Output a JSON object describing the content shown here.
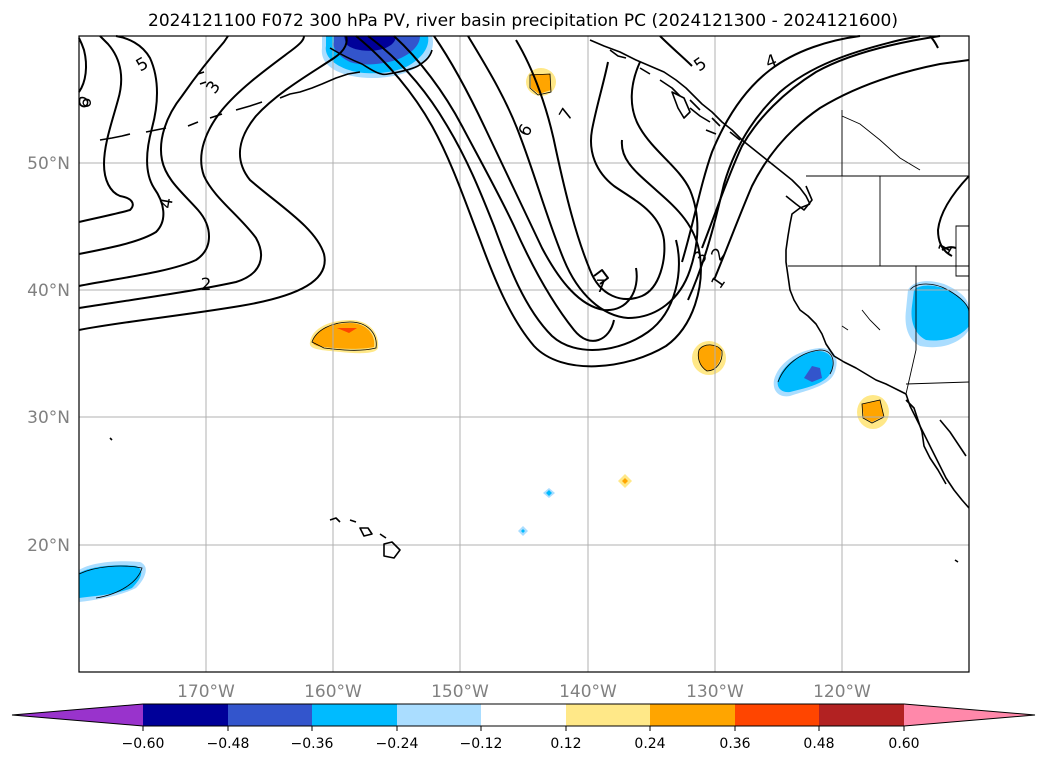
{
  "title": "2024121100 F072 300 hPa PV, river basin precipitation PC (2024121300 - 2024121600)",
  "map": {
    "lon_range": [
      -180,
      -110
    ],
    "lat_range": [
      10,
      60
    ],
    "projection": "plate-carree"
  },
  "lat_labels": [
    {
      "lat": 50,
      "text": "50°N"
    },
    {
      "lat": 40,
      "text": "40°N"
    },
    {
      "lat": 30,
      "text": "30°N"
    },
    {
      "lat": 20,
      "text": "20°N"
    }
  ],
  "lon_labels": [
    {
      "lon": -170,
      "text": "170°W"
    },
    {
      "lon": -160,
      "text": "160°W"
    },
    {
      "lon": -150,
      "text": "150°W"
    },
    {
      "lon": -140,
      "text": "140°W"
    },
    {
      "lon": -130,
      "text": "130°W"
    },
    {
      "lon": -120,
      "text": "120°W"
    }
  ],
  "contour_labels": [
    {
      "text": "5",
      "lon": -175,
      "lat": 57.8
    },
    {
      "text": "3",
      "lon": -171,
      "lat": 55.0
    },
    {
      "text": "6",
      "lon": -179.5,
      "lat": 55.5
    },
    {
      "text": "4",
      "lon": -173.2,
      "lat": 47.0
    },
    {
      "text": "2",
      "lon": -170.0,
      "lat": 40.5
    },
    {
      "text": "6",
      "lon": -146.2,
      "lat": 52.6
    },
    {
      "text": "7",
      "lon": -143.8,
      "lat": 53.9
    },
    {
      "text": "7",
      "lon": -138.9,
      "lat": 40.5
    },
    {
      "text": "5",
      "lon": -129.3,
      "lat": 57.8
    },
    {
      "text": "4",
      "lon": -125.3,
      "lat": 58.1
    },
    {
      "text": "3",
      "lon": -131.1,
      "lat": 42.8
    },
    {
      "text": "2",
      "lon": -129.7,
      "lat": 43.0
    },
    {
      "text": "1",
      "lon": -129.7,
      "lat": 40.8
    },
    {
      "text": "1",
      "lon": -112.1,
      "lat": 43.2
    }
  ],
  "colorbar": {
    "levels": [
      "-0.60",
      "-0.48",
      "-0.36",
      "-0.24",
      "-0.12",
      "0.12",
      "0.24",
      "0.36",
      "0.48",
      "0.60"
    ],
    "label_text": [
      "−0.60",
      "−0.48",
      "−0.36",
      "−0.24",
      "−0.12",
      "0.12",
      "0.24",
      "0.36",
      "0.48",
      "0.60"
    ],
    "colors": [
      "#9933cc",
      "#000099",
      "#3355cc",
      "#00bbff",
      "#aaddff",
      "#ffffff",
      "#ffe888",
      "#ffa500",
      "#ff4500",
      "#b22222",
      "#ff88aa"
    ],
    "extend": "both"
  },
  "colors": {
    "gridline": "#b0b0b0",
    "tick_label": "#808080",
    "contour": "#000000"
  }
}
